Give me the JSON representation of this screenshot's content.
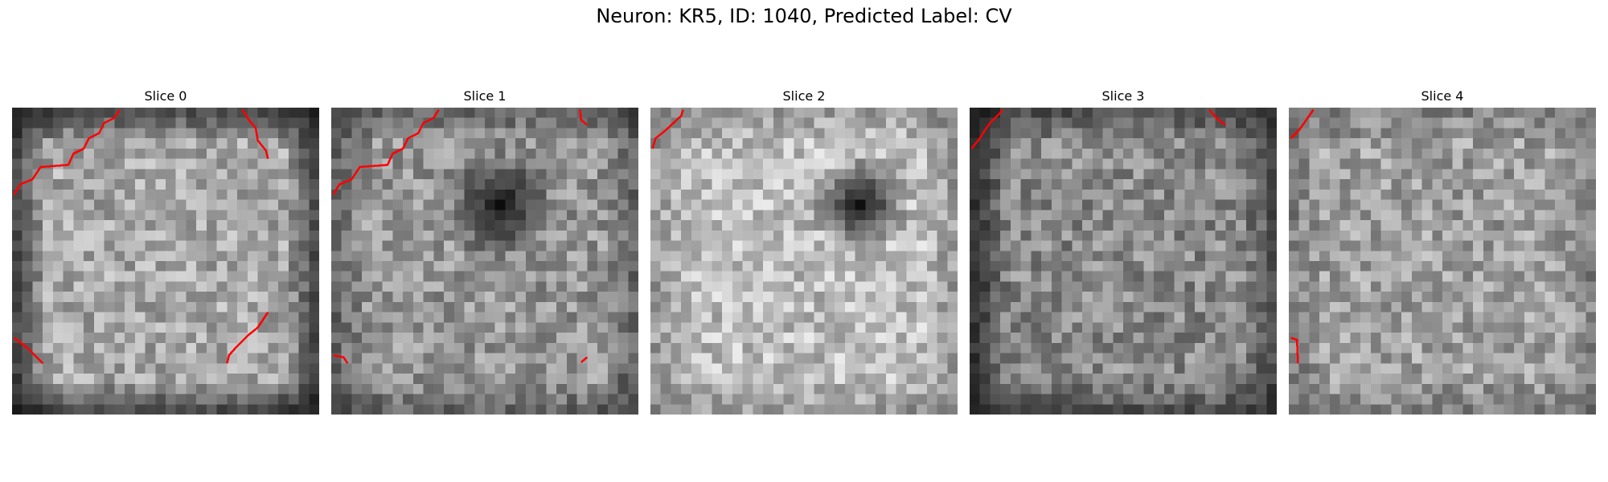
{
  "figure": {
    "title": "Neuron: KR5, ID: 1040, Predicted Label: CV"
  },
  "slices": [
    {
      "label": "Slice 0",
      "dark_spot": null,
      "edge_darkness": "strong-corners",
      "contour_color": "#ff0000"
    },
    {
      "label": "Slice 1",
      "dark_spot": "upper-center",
      "edge_darkness": "medium",
      "contour_color": "#ff0000"
    },
    {
      "label": "Slice 2",
      "dark_spot": "upper-right",
      "edge_darkness": "light",
      "contour_color": "#ff0000"
    },
    {
      "label": "Slice 3",
      "dark_spot": null,
      "edge_darkness": "strong-left",
      "contour_color": "#ff0000"
    },
    {
      "label": "Slice 4",
      "dark_spot": null,
      "edge_darkness": "light",
      "contour_color": "#ff0000"
    }
  ],
  "colormap": "gray"
}
